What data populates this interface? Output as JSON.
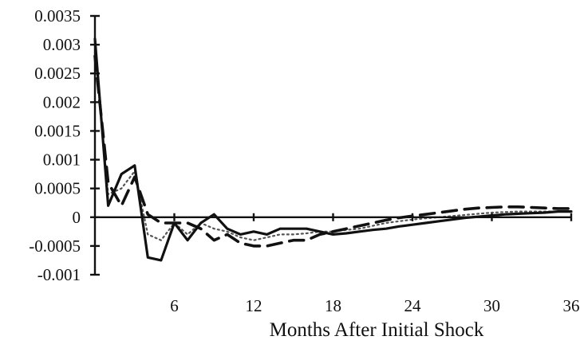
{
  "chart_data": {
    "type": "line",
    "title": "",
    "xlabel": "Months After Initial Shock",
    "ylabel": "",
    "xlim": [
      0,
      36
    ],
    "ylim": [
      -0.001,
      0.0035
    ],
    "x_ticks": [
      "6",
      "12",
      "18",
      "24",
      "30",
      "36"
    ],
    "y_ticks": [
      "0.0035",
      "0.003",
      "0.0025",
      "0.002",
      "0.0015",
      "0.001",
      "0.0005",
      "0",
      "-0.0005",
      "-0.001"
    ],
    "grid": false,
    "legend": "none",
    "series": [
      {
        "style": "solid",
        "color": "#111111",
        "x": [
          0,
          1,
          2,
          3,
          4,
          5,
          6,
          7,
          8,
          9,
          10,
          11,
          12,
          13,
          14,
          15,
          16,
          17,
          18,
          19,
          20,
          21,
          22,
          23,
          24,
          25,
          26,
          27,
          28,
          29,
          30,
          31,
          32,
          33,
          34,
          35,
          36
        ],
        "y": [
          0.0031,
          0.0002,
          0.00075,
          0.0009,
          -0.0007,
          -0.00075,
          -0.0001,
          -0.0004,
          -0.0001,
          5e-05,
          -0.0002,
          -0.0003,
          -0.00025,
          -0.0003,
          -0.0002,
          -0.0002,
          -0.0002,
          -0.00025,
          -0.0003,
          -0.00028,
          -0.00025,
          -0.00022,
          -0.0002,
          -0.00016,
          -0.00013,
          -0.0001,
          -7e-05,
          -4e-05,
          -1e-05,
          1e-05,
          3e-05,
          5e-05,
          6e-05,
          7e-05,
          8e-05,
          0.0001,
          0.0001
        ]
      },
      {
        "style": "dashed",
        "color": "#111111",
        "x": [
          0,
          1,
          2,
          3,
          4,
          5,
          6,
          7,
          8,
          9,
          10,
          11,
          12,
          13,
          14,
          15,
          16,
          17,
          18,
          19,
          20,
          21,
          22,
          23,
          24,
          25,
          26,
          27,
          28,
          29,
          30,
          31,
          32,
          33,
          34,
          35,
          36
        ],
        "y": [
          0.0028,
          0.0006,
          0.0002,
          0.0007,
          5e-05,
          -0.0001,
          -0.0001,
          -0.0001,
          -0.0002,
          -0.0004,
          -0.0003,
          -0.00045,
          -0.0005,
          -0.0005,
          -0.00045,
          -0.0004,
          -0.0004,
          -0.0003,
          -0.00025,
          -0.0002,
          -0.00015,
          -0.0001,
          -5e-05,
          -1e-05,
          2e-05,
          5e-05,
          8e-05,
          0.00011,
          0.00014,
          0.00016,
          0.00017,
          0.00018,
          0.00018,
          0.00017,
          0.00016,
          0.00015,
          0.00015
        ]
      },
      {
        "style": "dotted",
        "color": "#555555",
        "x": [
          0,
          1,
          2,
          3,
          4,
          5,
          6,
          7,
          8,
          9,
          10,
          11,
          12,
          13,
          14,
          15,
          16,
          17,
          18,
          19,
          20,
          21,
          22,
          23,
          24,
          25,
          26,
          27,
          28,
          29,
          30,
          31,
          32,
          33,
          34,
          35,
          36
        ],
        "y": [
          0.0029,
          0.0004,
          0.0005,
          0.0008,
          -0.0003,
          -0.0004,
          -0.0001,
          -0.0003,
          -0.0001,
          -0.0002,
          -0.00025,
          -0.00035,
          -0.0004,
          -0.00035,
          -0.0003,
          -0.0003,
          -0.00028,
          -0.00025,
          -0.00025,
          -0.00022,
          -0.0002,
          -0.00015,
          -0.0001,
          -7e-05,
          -4e-05,
          -2e-05,
          0.0,
          2e-05,
          4e-05,
          6e-05,
          8e-05,
          9e-05,
          0.0001,
          0.0001,
          0.0001,
          0.0001,
          0.0001
        ]
      }
    ]
  }
}
